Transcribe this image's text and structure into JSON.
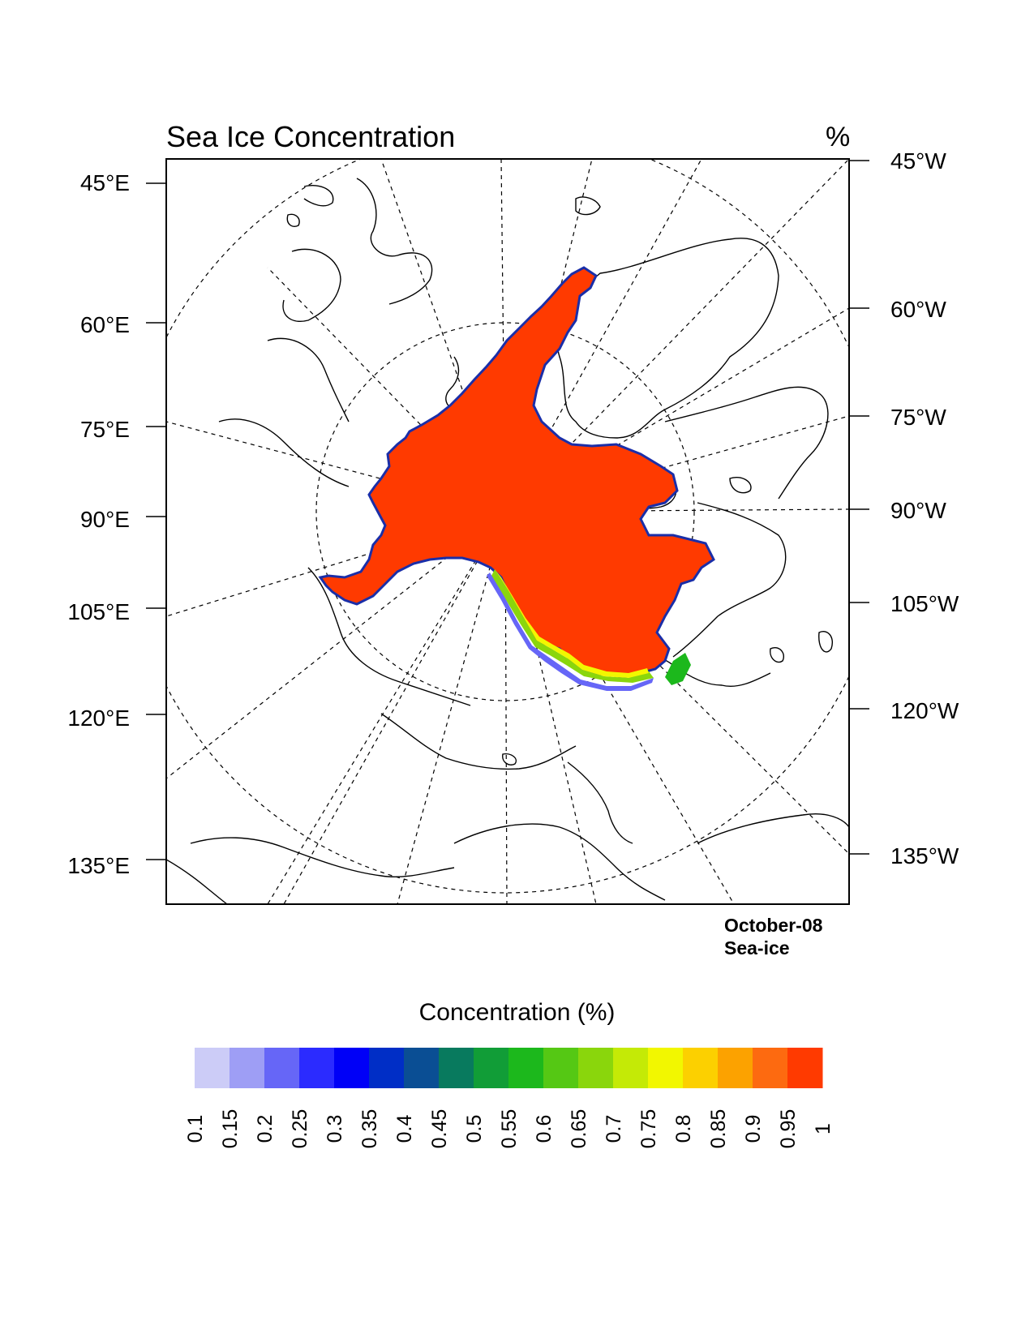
{
  "map": {
    "title": "Sea Ice Concentration",
    "units": "%",
    "left_labels": [
      "45°E",
      "60°E",
      "75°E",
      "90°E",
      "105°E",
      "120°E",
      "135°E"
    ],
    "right_labels": [
      "45°W",
      "60°W",
      "75°W",
      "90°W",
      "105°W",
      "120°W",
      "135°W"
    ],
    "note_date": "October-08",
    "note_field": "Sea-ice"
  },
  "colorbar": {
    "title": "Concentration (%)",
    "labels": [
      "0.1",
      "0.15",
      "0.2",
      "0.25",
      "0.3",
      "0.35",
      "0.4",
      "0.45",
      "0.5",
      "0.55",
      "0.6",
      "0.65",
      "0.7",
      "0.75",
      "0.8",
      "0.85",
      "0.9",
      "0.95",
      "1"
    ],
    "colors": [
      "#ccccf7",
      "#9e9ef5",
      "#6666f7",
      "#2b2bff",
      "#0000f7",
      "#002ec6",
      "#0a4e94",
      "#087a5e",
      "#119d37",
      "#1cb81c",
      "#55c814",
      "#8ad60c",
      "#c4ea06",
      "#f2f700",
      "#fcd000",
      "#fca200",
      "#fd6a10",
      "#ff3a00"
    ]
  },
  "ice": {
    "fill": "#ff3a00",
    "edge": "#1a2ea8"
  }
}
